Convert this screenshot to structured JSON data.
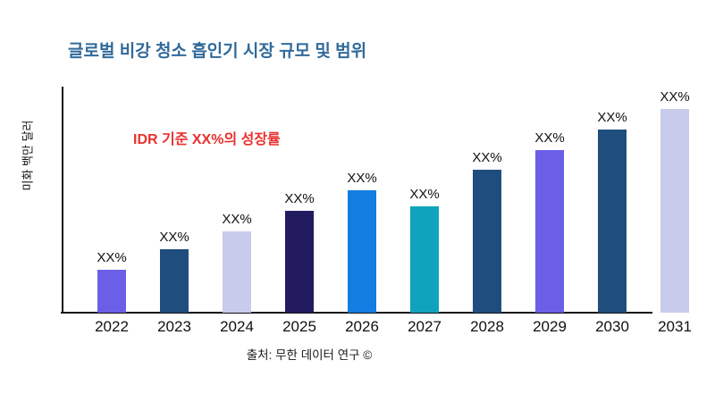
{
  "page": {
    "title": "글로벌 비강 청소 흡인기 시장 규모 및 범위",
    "annotation": "IDR 기준 XX%의 성장률",
    "source": "출처: 무한 데이터 연구 ©"
  },
  "colors": {
    "title": "#316a9a",
    "annotation": "#e8312e",
    "axis": "#111111",
    "label_text": "#111111"
  },
  "chart_data": {
    "type": "bar",
    "title": "글로벌 비강 청소 흡인기 시장 규모 및 범위",
    "xlabel": "",
    "ylabel": "미화 백만 달러",
    "categories": [
      "2022",
      "2023",
      "2024",
      "2025",
      "2026",
      "2027",
      "2028",
      "2029",
      "2030",
      "2031"
    ],
    "value_labels": [
      "XX%",
      "XX%",
      "XX%",
      "XX%",
      "XX%",
      "XX%",
      "XX%",
      "XX%",
      "XX%",
      "XX%"
    ],
    "values_pct_of_tallest": [
      21,
      31,
      40,
      50,
      60,
      52,
      70,
      80,
      90,
      100
    ],
    "bar_colors": [
      "#6b5fe8",
      "#1f4e7e",
      "#c7cbec",
      "#221b60",
      "#127ee1",
      "#10a3bd",
      "#1f4e7e",
      "#6b5fe8",
      "#1f4e7e",
      "#c7cbec"
    ],
    "annotation": "IDR 기준 XX%의 성장률",
    "source": "출처: 무한 데이터 연구 ©",
    "legend_position": "none",
    "y_axis_ticks": "none",
    "grid": false
  }
}
